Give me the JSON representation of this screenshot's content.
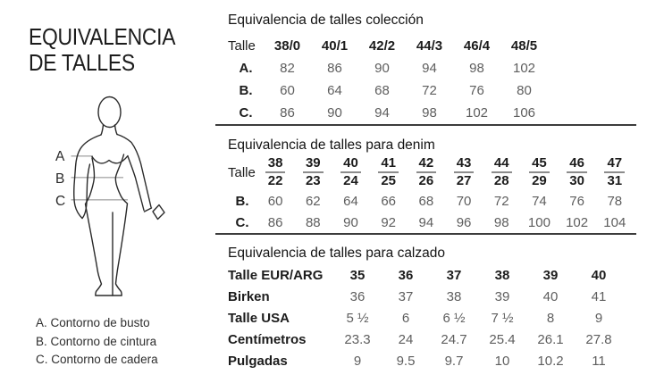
{
  "colors": {
    "background": "#ffffff",
    "text_dark": "#1c1c1c",
    "text_gray": "#5e5e5e",
    "measure_line_gray": "#a8a8a8",
    "divider_dark": "#3c3c3c",
    "fraction_bar_gray": "#8c8c8c"
  },
  "left_panel": {
    "title": {
      "line1": "EQUIVALENCIA",
      "line2": "DE TALLES"
    },
    "figure_labels": {
      "a": "A",
      "b": "B",
      "c": "C"
    },
    "legend": {
      "items": [
        {
          "text": "A. Contorno de busto"
        },
        {
          "text": "B. Contorno de cintura"
        },
        {
          "text": "C. Contorno de cadera"
        }
      ]
    }
  },
  "sections": {
    "coleccion": {
      "title": "Equivalencia de talles colección",
      "header": [
        "Talle",
        "38/0",
        "40/1",
        "42/2",
        "44/3",
        "46/4",
        "48/5"
      ],
      "rows": [
        {
          "label": "A.",
          "values": [
            "82",
            "86",
            "90",
            "94",
            "98",
            "102"
          ]
        },
        {
          "label": "B.",
          "values": [
            "60",
            "64",
            "68",
            "72",
            "76",
            "80"
          ]
        },
        {
          "label": "C.",
          "values": [
            "86",
            "90",
            "94",
            "98",
            "102",
            "106"
          ]
        }
      ]
    },
    "denim": {
      "title": "Equivalencia de talles para denim",
      "header_label": "Talle",
      "fractions": [
        [
          "38",
          "22"
        ],
        [
          "39",
          "23"
        ],
        [
          "40",
          "24"
        ],
        [
          "41",
          "25"
        ],
        [
          "42",
          "26"
        ],
        [
          "43",
          "27"
        ],
        [
          "44",
          "28"
        ],
        [
          "45",
          "29"
        ],
        [
          "46",
          "30"
        ],
        [
          "47",
          "31"
        ]
      ],
      "rows": [
        {
          "label": "B.",
          "values": [
            "60",
            "62",
            "64",
            "66",
            "68",
            "70",
            "72",
            "74",
            "76",
            "78"
          ]
        },
        {
          "label": "C.",
          "values": [
            "86",
            "88",
            "90",
            "92",
            "94",
            "96",
            "98",
            "100",
            "102",
            "104"
          ]
        }
      ]
    },
    "calzado": {
      "title": "Equivalencia de talles para calzado",
      "rows": [
        {
          "label": "Talle EUR/ARG",
          "values": [
            "35",
            "36",
            "37",
            "38",
            "39",
            "40"
          ],
          "emphasis": true
        },
        {
          "label": "Birken",
          "values": [
            "36",
            "37",
            "38",
            "39",
            "40",
            "41"
          ],
          "emphasis": false
        },
        {
          "label": "Talle USA",
          "values": [
            "5 ½",
            "6",
            "6 ½",
            "7 ½",
            "8",
            "9"
          ],
          "emphasis": false
        },
        {
          "label": "Centímetros",
          "values": [
            "23.3",
            "24",
            "24.7",
            "25.4",
            "26.1",
            "27.8"
          ],
          "emphasis": false
        },
        {
          "label": "Pulgadas",
          "values": [
            "9",
            "9.5",
            "9.7",
            "10",
            "10.2",
            "11"
          ],
          "emphasis": false
        }
      ]
    }
  }
}
